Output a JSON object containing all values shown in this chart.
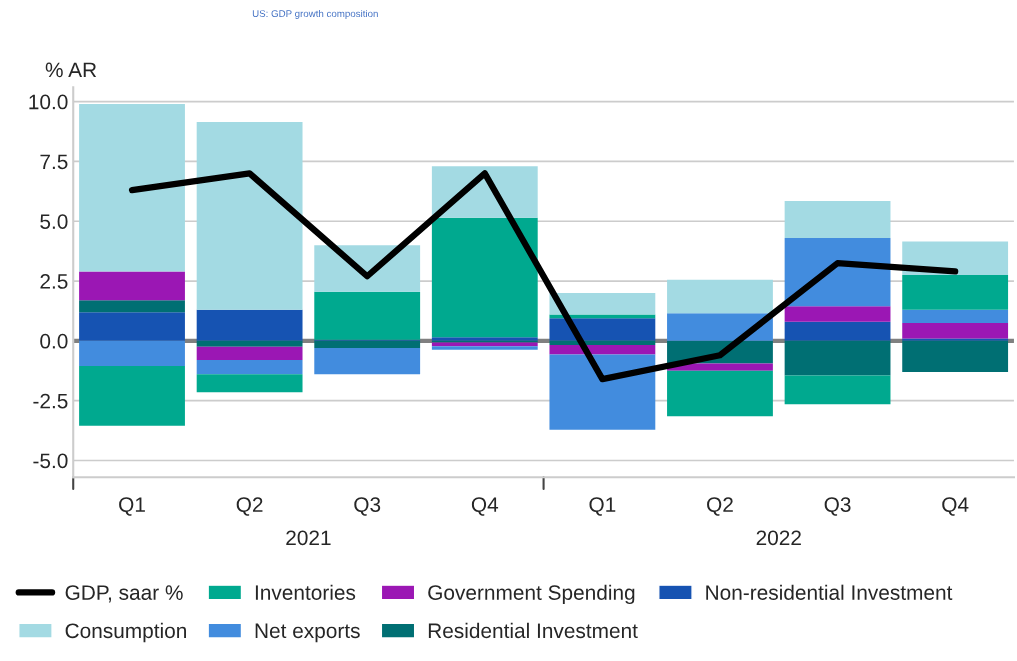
{
  "chart_data": {
    "type": "bar",
    "title": "US: GDP growth composition",
    "ylabel": "% AR",
    "categories": [
      "Q1",
      "Q2",
      "Q3",
      "Q4",
      "Q1",
      "Q2",
      "Q3",
      "Q4"
    ],
    "annotations": [
      "2021",
      "2022"
    ],
    "stacked": true,
    "series": [
      {
        "name": "Non-residential Investment",
        "color": "#1653b2",
        "values": [
          1.2,
          1.3,
          0.05,
          0.15,
          0.95,
          0,
          0.8,
          0.1
        ]
      },
      {
        "name": "Residential Investment",
        "color": "#006f73",
        "values": [
          0.5,
          -0.25,
          -0.3,
          -0.07,
          -0.17,
          -0.95,
          -1.45,
          -1.3
        ]
      },
      {
        "name": "Government Spending",
        "color": "#9b17b4",
        "values": [
          1.2,
          -0.55,
          0,
          -0.15,
          -0.4,
          -0.3,
          0.65,
          0.65
        ]
      },
      {
        "name": "Net exports",
        "color": "#428cde",
        "values": [
          -1.05,
          -0.6,
          -1.1,
          -0.15,
          -3.15,
          1.15,
          2.85,
          0.55
        ]
      },
      {
        "name": "Inventories",
        "color": "#00a98f",
        "values": [
          -2.5,
          -0.75,
          2.0,
          5.0,
          0.15,
          -1.9,
          -1.2,
          1.45
        ]
      },
      {
        "name": "Consumption",
        "color": "#a3dae3",
        "values": [
          7.0,
          7.85,
          1.95,
          2.15,
          0.9,
          1.4,
          1.55,
          1.4
        ]
      },
      {
        "name": "GDP, saar %",
        "type": "line",
        "color": "#000000",
        "values": [
          6.3,
          7.0,
          2.7,
          7.0,
          -1.6,
          -0.6,
          3.25,
          2.9
        ]
      }
    ],
    "ylim": [
      -5.7,
      10.6
    ],
    "yticks": [
      {
        "value": 10,
        "label": "10.0"
      },
      {
        "value": 7.5,
        "label": "7.5"
      },
      {
        "value": 5,
        "label": "5.0"
      },
      {
        "value": 2.5,
        "label": "2.5"
      },
      {
        "value": 0,
        "label": "0.0"
      },
      {
        "value": -2.5,
        "label": "-2.5"
      },
      {
        "value": -5,
        "label": "-5.0"
      }
    ],
    "ref_lines": [
      {
        "axis": "y",
        "value": 0,
        "color": "#808080"
      }
    ],
    "grid": "y",
    "legend": "bottom",
    "marker": "none",
    "line_style": "solid"
  }
}
